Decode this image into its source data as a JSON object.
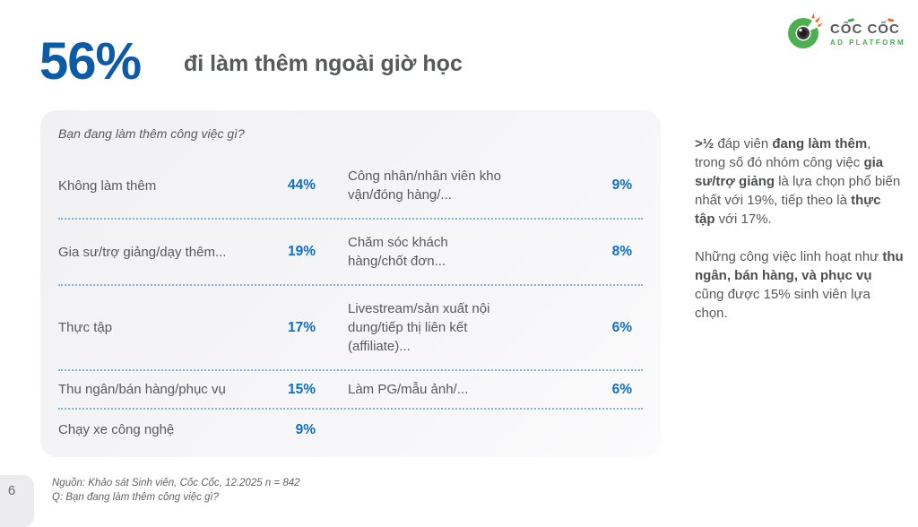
{
  "header": {
    "stat": "56%",
    "subtitle": "đi làm thêm ngoài giờ học"
  },
  "logo": {
    "brand": "CỐC CỐC",
    "tagline": "AD PLATFORM"
  },
  "card": {
    "question": "Bạn đang làm thêm công việc gì?",
    "rows": [
      {
        "left": {
          "label": "Không làm thêm",
          "value": "44%"
        },
        "right": {
          "label": "Công nhân/nhân viên kho vận/đóng hàng/...",
          "value": "9%"
        }
      },
      {
        "left": {
          "label": "Gia sư/trợ giảng/dạy thêm...",
          "value": "19%"
        },
        "right": {
          "label": "Chăm sóc khách hàng/chốt đơn...",
          "value": "8%"
        }
      },
      {
        "left": {
          "label": "Thực tập",
          "value": "17%"
        },
        "right": {
          "label": "Livestream/sản xuất nội dung/tiếp thị liên kết (affiliate)...",
          "value": "6%"
        }
      },
      {
        "left": {
          "label": "Thu ngân/bán hàng/phục vụ",
          "value": "15%"
        },
        "right": {
          "label": "Làm PG/mẫu ảnh/...",
          "value": "6%"
        }
      },
      {
        "left": {
          "label": "Chạy xe công nghệ",
          "value": "9%"
        },
        "right": null
      }
    ]
  },
  "sidebar": {
    "paragraphs": [
      [
        {
          "text": ">½",
          "bold": true
        },
        {
          "text": " đáp viên ",
          "bold": false
        },
        {
          "text": "đang làm thêm",
          "bold": true
        },
        {
          "text": ", trong số đó nhóm công việc ",
          "bold": false
        },
        {
          "text": "gia sư/trợ giảng",
          "bold": true
        },
        {
          "text": " là lựa chọn phổ biến nhất với 19%, tiếp theo là ",
          "bold": false
        },
        {
          "text": "thực tập",
          "bold": true
        },
        {
          "text": " với 17%.",
          "bold": false
        }
      ],
      [
        {
          "text": "Những công việc linh hoạt như ",
          "bold": false
        },
        {
          "text": "thu ngân, bán hàng, và phục vụ",
          "bold": true
        },
        {
          "text": " cũng được 15% sinh viên lựa chọn.",
          "bold": false
        }
      ]
    ]
  },
  "footer": {
    "page_number": "6",
    "source_line1": "Nguồn: Khảo sát Sinh viên, Cốc Cốc, 12.2025 n = 842",
    "source_line2": "Q: Bạn đang làm thêm công việc gì?"
  },
  "colors": {
    "headline_blue": "#0d5aa6",
    "percent_blue": "#0e6fc5",
    "text_gray": "#58595b",
    "dotted_line_blue": "#79b3de",
    "card_background": "#f2f2f4",
    "brand_green": "#43b04a",
    "brand_orange": "#f26a21"
  }
}
